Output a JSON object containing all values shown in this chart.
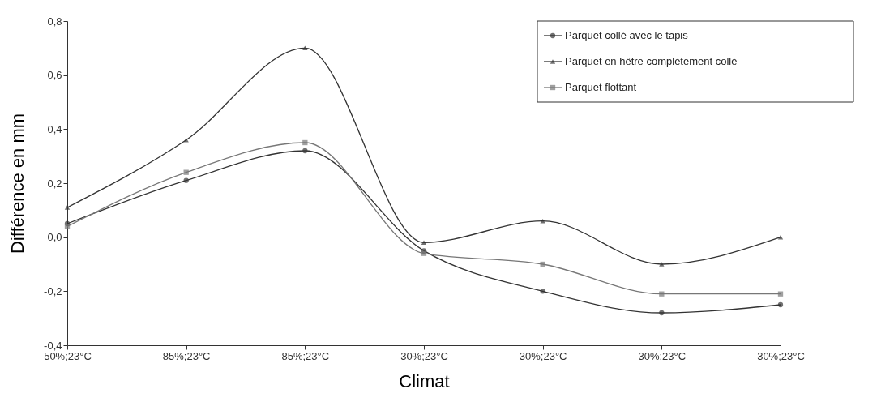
{
  "chart_data": {
    "type": "line",
    "xlabel": "Climat",
    "ylabel": "Différence en mm",
    "categories": [
      "50%;23°C",
      "85%;23°C",
      "85%;23°C",
      "30%;23°C",
      "30%;23°C",
      "30%;23°C",
      "30%;23°C"
    ],
    "ylim": [
      -0.4,
      0.8
    ],
    "yticks": [
      {
        "value": -0.4,
        "label": "-0,4"
      },
      {
        "value": -0.2,
        "label": "-0,2"
      },
      {
        "value": 0,
        "label": "0,0"
      },
      {
        "value": 0.2,
        "label": "0,2"
      },
      {
        "value": 0.4,
        "label": "0,4"
      },
      {
        "value": 0.6,
        "label": "0,6"
      },
      {
        "value": 0.8,
        "label": "0,8"
      }
    ],
    "grid": false,
    "legend": "top right",
    "line_style": "solid",
    "series": [
      {
        "name": "Parquet collé avec le tapis",
        "color": "#333333",
        "marker": "circle",
        "values": [
          0.05,
          0.21,
          0.32,
          -0.05,
          -0.2,
          -0.28,
          -0.25
        ]
      },
      {
        "name": "Parquet en hêtre complètement collé",
        "color": "#333333",
        "marker": "triangle",
        "values": [
          0.11,
          0.36,
          0.7,
          -0.02,
          0.06,
          -0.1,
          0.0
        ]
      },
      {
        "name": "Parquet flottant",
        "color": "#777777",
        "marker": "square",
        "values": [
          0.04,
          0.24,
          0.35,
          -0.06,
          -0.1,
          -0.21,
          -0.21
        ]
      }
    ]
  }
}
